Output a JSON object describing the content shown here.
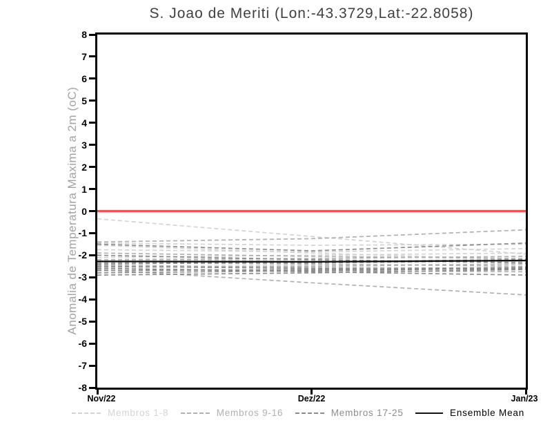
{
  "title": "S. Joao de Meriti (Lon:-43.3729,Lat:-22.8058)",
  "colors": {
    "background": "#ffffff",
    "axis": "#000000",
    "title_text": "#3f3f3f",
    "ylabel_text": "#a2a2a2",
    "zero_line": "#f85250",
    "members_1_8": "#d3d3d3",
    "members_9_16": "#b0b0b0",
    "members_17_25": "#8c8c8c",
    "ensemble_mean": "#111111"
  },
  "chart_data": {
    "type": "line",
    "title": "S. Joao de Meriti (Lon:-43.3729,Lat:-22.8058)",
    "ylabel": "Anomalia de Temperatura Maxima a 2m (oC)",
    "xlabel": "",
    "x_ticklabels": [
      "Nov/22",
      "Dez/22",
      "Jan/23"
    ],
    "ylim": [
      -8,
      8
    ],
    "y_tick_step": 1,
    "grid": false,
    "legend_position": "bottom",
    "zero_line": {
      "value": 0,
      "color": "#f85250"
    },
    "series_groups": [
      {
        "name": "Membros 1-8",
        "color": "#d3d3d3",
        "style": "dashed",
        "members": [
          [
            -0.35,
            -1.15,
            -1.95
          ],
          [
            -1.45,
            -1.55,
            -1.5
          ],
          [
            -1.55,
            -1.9,
            -2.2
          ],
          [
            -1.75,
            -1.85,
            -1.7
          ],
          [
            -2.1,
            -2.0,
            -1.9
          ],
          [
            -2.2,
            -2.25,
            -2.3
          ],
          [
            -2.4,
            -2.3,
            -2.2
          ],
          [
            -2.55,
            -2.45,
            -2.4
          ]
        ]
      },
      {
        "name": "Membros 9-16",
        "color": "#b0b0b0",
        "style": "dashed",
        "members": [
          [
            -1.4,
            -1.25,
            -0.85
          ],
          [
            -1.9,
            -2.05,
            -2.15
          ],
          [
            -2.2,
            -2.15,
            -2.05
          ],
          [
            -2.35,
            -2.4,
            -2.5
          ],
          [
            -2.45,
            -2.55,
            -2.6
          ],
          [
            -2.55,
            -2.5,
            -2.4
          ],
          [
            -2.6,
            -2.7,
            -2.75
          ],
          [
            -2.65,
            -3.25,
            -3.8
          ]
        ]
      },
      {
        "name": "Membros 17-25",
        "color": "#8c8c8c",
        "style": "dashed",
        "members": [
          [
            -1.5,
            -1.8,
            -1.45
          ],
          [
            -2.0,
            -2.2,
            -2.35
          ],
          [
            -2.3,
            -2.35,
            -2.25
          ],
          [
            -2.4,
            -2.3,
            -2.2
          ],
          [
            -2.5,
            -2.6,
            -2.65
          ],
          [
            -2.6,
            -2.75,
            -2.9
          ],
          [
            -2.7,
            -2.65,
            -2.55
          ],
          [
            -2.8,
            -2.7,
            -2.6
          ],
          [
            -2.9,
            -2.8,
            -2.65
          ]
        ]
      },
      {
        "name": "Ensemble Mean",
        "color": "#111111",
        "style": "solid",
        "members": [
          [
            -2.28,
            -2.3,
            -2.24
          ]
        ]
      }
    ]
  }
}
